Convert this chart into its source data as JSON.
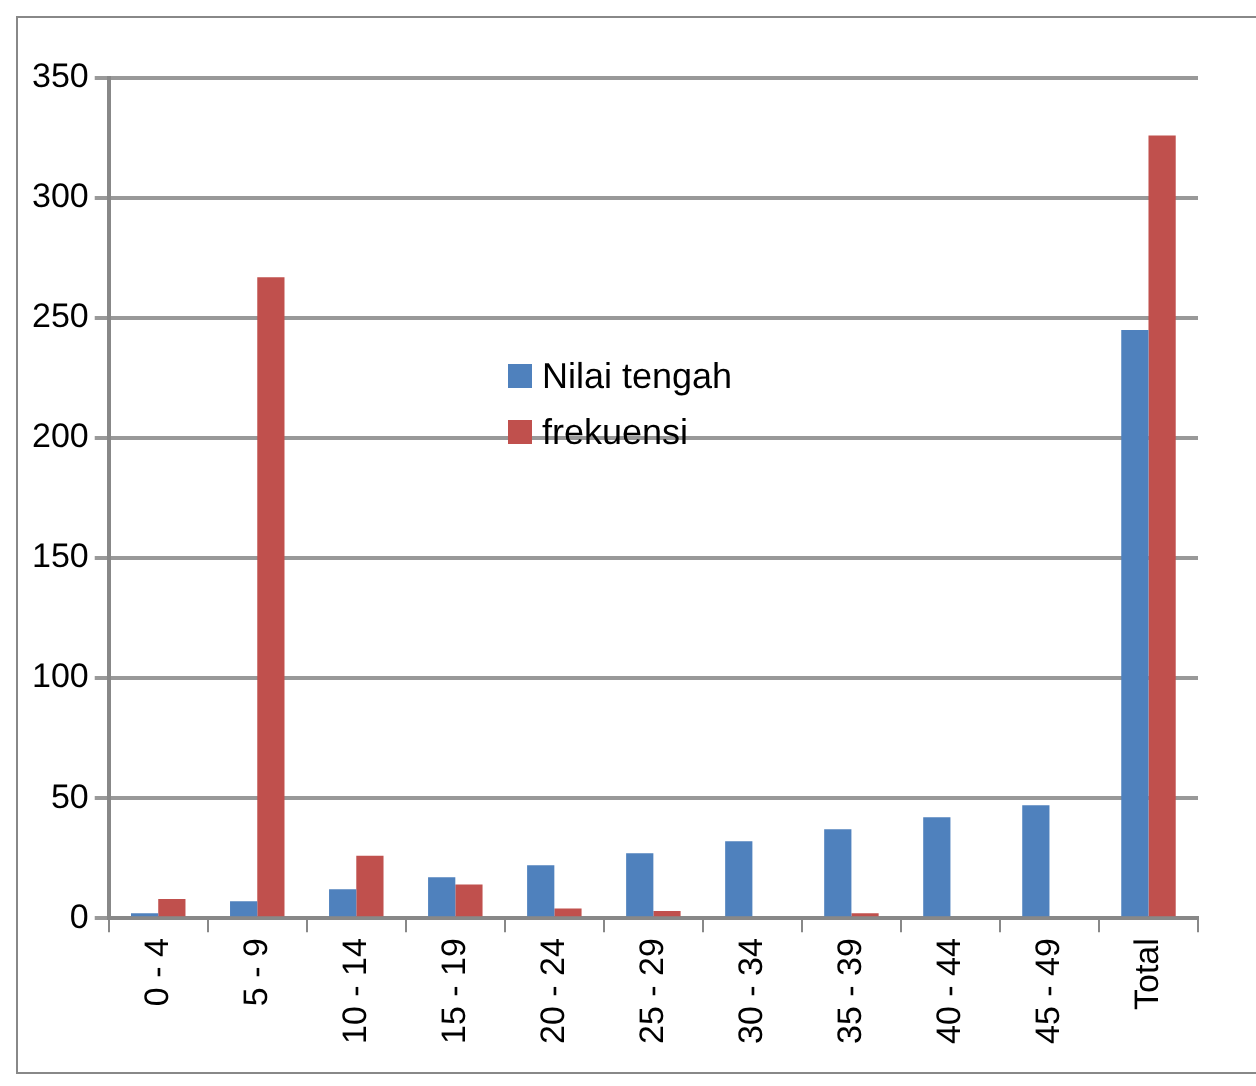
{
  "chart_data": {
    "type": "bar",
    "categories": [
      "0 - 4",
      "5 - 9",
      "10 - 14",
      "15 - 19",
      "20 - 24",
      "25 - 29",
      "30 - 34",
      "35 - 39",
      "40 - 44",
      "45 - 49",
      "Total"
    ],
    "series": [
      {
        "name": "Nilai tengah",
        "color": "#4f81bd",
        "values": [
          2,
          7,
          12,
          17,
          22,
          27,
          32,
          37,
          42,
          47,
          245
        ]
      },
      {
        "name": "frekuensi",
        "color": "#c0504d",
        "values": [
          8,
          267,
          26,
          14,
          4,
          3,
          0,
          2,
          0,
          0,
          326
        ]
      }
    ],
    "ylim": [
      0,
      350
    ],
    "yticks": [
      0,
      50,
      100,
      150,
      200,
      250,
      300,
      350
    ],
    "grid": "y",
    "legend": "center"
  }
}
